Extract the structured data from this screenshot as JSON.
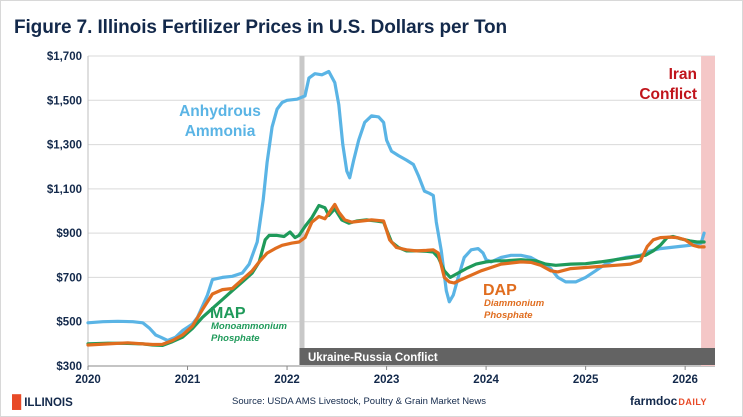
{
  "title": "Figure 7. Illinois Fertilizer Prices in U.S. Dollars per Ton",
  "chart_data": {
    "type": "line",
    "yticks": [
      "$300",
      "$500",
      "$700",
      "$900",
      "$1,100",
      "$1,300",
      "$1,500",
      "$1,700"
    ],
    "ylim": [
      300,
      1700
    ],
    "xticks": [
      "2020",
      "2021",
      "2022",
      "2023",
      "2024",
      "2025",
      "2026"
    ],
    "xlim": [
      2020.0,
      2026.3
    ],
    "grid": "horizontal",
    "annotations": {
      "anhydrous": [
        "Anhydrous",
        "Ammonia"
      ],
      "map": "MAP",
      "map_sub": [
        "Monoammonium",
        "Phosphate"
      ],
      "dap": "DAP",
      "dap_sub": [
        "Diammonium",
        "Phosphate"
      ],
      "iran": [
        "Iran",
        "Conflict"
      ],
      "ukraine": "Ukraine-Russia Conflict"
    },
    "events": {
      "ukraine_start": 2022.15,
      "iran_start": 2026.16
    },
    "colors": {
      "anhydrous": "#5ab4e5",
      "map": "#1f9a5a",
      "dap": "#e06d1f",
      "grid": "#d9d9d9",
      "ukraine_line": "#c8c8c8",
      "ukraine_band": "#636363",
      "iran_band": "#f4c7c7",
      "iran_text": "#c0141b",
      "axis_text": "#13294b"
    },
    "series": [
      {
        "name": "Anhydrous Ammonia",
        "key": "anhydrous",
        "points": [
          [
            2020.0,
            495
          ],
          [
            2020.15,
            500
          ],
          [
            2020.3,
            502
          ],
          [
            2020.45,
            500
          ],
          [
            2020.55,
            495
          ],
          [
            2020.62,
            470
          ],
          [
            2020.68,
            440
          ],
          [
            2020.73,
            430
          ],
          [
            2020.8,
            415
          ],
          [
            2020.88,
            430
          ],
          [
            2020.95,
            460
          ],
          [
            2021.0,
            475
          ],
          [
            2021.05,
            490
          ],
          [
            2021.1,
            520
          ],
          [
            2021.15,
            570
          ],
          [
            2021.2,
            620
          ],
          [
            2021.25,
            690
          ],
          [
            2021.35,
            700
          ],
          [
            2021.45,
            705
          ],
          [
            2021.55,
            720
          ],
          [
            2021.62,
            760
          ],
          [
            2021.7,
            860
          ],
          [
            2021.76,
            1050
          ],
          [
            2021.8,
            1220
          ],
          [
            2021.85,
            1380
          ],
          [
            2021.9,
            1460
          ],
          [
            2021.95,
            1490
          ],
          [
            2022.0,
            1500
          ],
          [
            2022.1,
            1505
          ],
          [
            2022.18,
            1520
          ],
          [
            2022.22,
            1600
          ],
          [
            2022.28,
            1620
          ],
          [
            2022.35,
            1615
          ],
          [
            2022.42,
            1630
          ],
          [
            2022.48,
            1580
          ],
          [
            2022.52,
            1480
          ],
          [
            2022.56,
            1300
          ],
          [
            2022.6,
            1180
          ],
          [
            2022.63,
            1150
          ],
          [
            2022.67,
            1230
          ],
          [
            2022.72,
            1320
          ],
          [
            2022.78,
            1400
          ],
          [
            2022.85,
            1430
          ],
          [
            2022.92,
            1425
          ],
          [
            2022.97,
            1400
          ],
          [
            2023.0,
            1320
          ],
          [
            2023.05,
            1270
          ],
          [
            2023.12,
            1250
          ],
          [
            2023.2,
            1230
          ],
          [
            2023.27,
            1210
          ],
          [
            2023.32,
            1160
          ],
          [
            2023.38,
            1090
          ],
          [
            2023.43,
            1080
          ],
          [
            2023.47,
            1070
          ],
          [
            2023.5,
            950
          ],
          [
            2023.55,
            820
          ],
          [
            2023.6,
            640
          ],
          [
            2023.63,
            590
          ],
          [
            2023.67,
            620
          ],
          [
            2023.72,
            700
          ],
          [
            2023.78,
            790
          ],
          [
            2023.85,
            825
          ],
          [
            2023.92,
            830
          ],
          [
            2023.97,
            810
          ],
          [
            2024.0,
            780
          ],
          [
            2024.05,
            770
          ],
          [
            2024.15,
            790
          ],
          [
            2024.25,
            800
          ],
          [
            2024.35,
            800
          ],
          [
            2024.45,
            790
          ],
          [
            2024.55,
            765
          ],
          [
            2024.65,
            740
          ],
          [
            2024.72,
            700
          ],
          [
            2024.8,
            680
          ],
          [
            2024.9,
            680
          ],
          [
            2025.0,
            700
          ],
          [
            2025.1,
            730
          ],
          [
            2025.2,
            760
          ],
          [
            2025.3,
            780
          ],
          [
            2025.4,
            790
          ],
          [
            2025.55,
            800
          ],
          [
            2025.65,
            820
          ],
          [
            2025.75,
            830
          ],
          [
            2025.85,
            835
          ],
          [
            2025.95,
            840
          ],
          [
            2026.05,
            845
          ],
          [
            2026.12,
            850
          ],
          [
            2026.16,
            855
          ],
          [
            2026.19,
            900
          ]
        ]
      },
      {
        "name": "MAP",
        "key": "map",
        "points": [
          [
            2020.0,
            400
          ],
          [
            2020.2,
            403
          ],
          [
            2020.4,
            402
          ],
          [
            2020.55,
            400
          ],
          [
            2020.65,
            395
          ],
          [
            2020.75,
            393
          ],
          [
            2020.85,
            410
          ],
          [
            2020.95,
            430
          ],
          [
            2021.05,
            470
          ],
          [
            2021.15,
            520
          ],
          [
            2021.25,
            560
          ],
          [
            2021.35,
            600
          ],
          [
            2021.45,
            640
          ],
          [
            2021.55,
            680
          ],
          [
            2021.65,
            720
          ],
          [
            2021.72,
            770
          ],
          [
            2021.78,
            870
          ],
          [
            2021.82,
            890
          ],
          [
            2021.9,
            890
          ],
          [
            2021.97,
            885
          ],
          [
            2022.03,
            905
          ],
          [
            2022.08,
            880
          ],
          [
            2022.12,
            890
          ],
          [
            2022.18,
            930
          ],
          [
            2022.25,
            970
          ],
          [
            2022.32,
            1025
          ],
          [
            2022.38,
            1015
          ],
          [
            2022.42,
            980
          ],
          [
            2022.48,
            1010
          ],
          [
            2022.55,
            960
          ],
          [
            2022.62,
            945
          ],
          [
            2022.7,
            955
          ],
          [
            2022.8,
            960
          ],
          [
            2022.9,
            955
          ],
          [
            2022.97,
            950
          ],
          [
            2023.0,
            915
          ],
          [
            2023.05,
            860
          ],
          [
            2023.12,
            835
          ],
          [
            2023.2,
            820
          ],
          [
            2023.3,
            820
          ],
          [
            2023.4,
            818
          ],
          [
            2023.47,
            815
          ],
          [
            2023.52,
            790
          ],
          [
            2023.58,
            730
          ],
          [
            2023.64,
            700
          ],
          [
            2023.72,
            720
          ],
          [
            2023.8,
            740
          ],
          [
            2023.9,
            760
          ],
          [
            2024.0,
            770
          ],
          [
            2024.1,
            775
          ],
          [
            2024.2,
            775
          ],
          [
            2024.35,
            780
          ],
          [
            2024.5,
            775
          ],
          [
            2024.6,
            760
          ],
          [
            2024.7,
            755
          ],
          [
            2024.85,
            760
          ],
          [
            2025.0,
            762
          ],
          [
            2025.15,
            770
          ],
          [
            2025.3,
            780
          ],
          [
            2025.45,
            790
          ],
          [
            2025.6,
            800
          ],
          [
            2025.68,
            820
          ],
          [
            2025.75,
            845
          ],
          [
            2025.82,
            880
          ],
          [
            2025.88,
            885
          ],
          [
            2025.95,
            875
          ],
          [
            2026.05,
            865
          ],
          [
            2026.12,
            860
          ],
          [
            2026.19,
            860
          ]
        ]
      },
      {
        "name": "DAP",
        "key": "dap",
        "points": [
          [
            2020.0,
            395
          ],
          [
            2020.2,
            400
          ],
          [
            2020.4,
            405
          ],
          [
            2020.55,
            400
          ],
          [
            2020.65,
            397
          ],
          [
            2020.75,
            398
          ],
          [
            2020.85,
            415
          ],
          [
            2020.95,
            440
          ],
          [
            2021.05,
            480
          ],
          [
            2021.15,
            555
          ],
          [
            2021.25,
            625
          ],
          [
            2021.35,
            645
          ],
          [
            2021.45,
            650
          ],
          [
            2021.55,
            690
          ],
          [
            2021.65,
            730
          ],
          [
            2021.72,
            770
          ],
          [
            2021.8,
            810
          ],
          [
            2021.88,
            830
          ],
          [
            2021.95,
            845
          ],
          [
            2022.05,
            855
          ],
          [
            2022.12,
            860
          ],
          [
            2022.18,
            880
          ],
          [
            2022.25,
            950
          ],
          [
            2022.32,
            975
          ],
          [
            2022.38,
            965
          ],
          [
            2022.42,
            990
          ],
          [
            2022.48,
            1030
          ],
          [
            2022.52,
            995
          ],
          [
            2022.58,
            960
          ],
          [
            2022.65,
            950
          ],
          [
            2022.75,
            955
          ],
          [
            2022.85,
            960
          ],
          [
            2022.97,
            955
          ],
          [
            2023.03,
            870
          ],
          [
            2023.1,
            835
          ],
          [
            2023.2,
            825
          ],
          [
            2023.3,
            820
          ],
          [
            2023.4,
            822
          ],
          [
            2023.47,
            825
          ],
          [
            2023.52,
            810
          ],
          [
            2023.58,
            700
          ],
          [
            2023.63,
            680
          ],
          [
            2023.68,
            675
          ],
          [
            2023.75,
            690
          ],
          [
            2023.85,
            710
          ],
          [
            2023.95,
            730
          ],
          [
            2024.05,
            745
          ],
          [
            2024.15,
            760
          ],
          [
            2024.25,
            765
          ],
          [
            2024.35,
            770
          ],
          [
            2024.45,
            768
          ],
          [
            2024.55,
            755
          ],
          [
            2024.65,
            730
          ],
          [
            2024.72,
            725
          ],
          [
            2024.85,
            740
          ],
          [
            2025.0,
            745
          ],
          [
            2025.15,
            750
          ],
          [
            2025.3,
            755
          ],
          [
            2025.45,
            760
          ],
          [
            2025.55,
            775
          ],
          [
            2025.62,
            840
          ],
          [
            2025.68,
            870
          ],
          [
            2025.75,
            880
          ],
          [
            2025.85,
            882
          ],
          [
            2025.92,
            880
          ],
          [
            2026.0,
            870
          ],
          [
            2026.08,
            845
          ],
          [
            2026.14,
            838
          ],
          [
            2026.19,
            838
          ]
        ]
      }
    ]
  },
  "footer": {
    "left_logo": "ILLINOIS",
    "source": "Source: USDA AMS Livestock, Poultry & Grain Market News",
    "right_logo_main": "farmdoc",
    "right_logo_sub": "DAILY"
  }
}
